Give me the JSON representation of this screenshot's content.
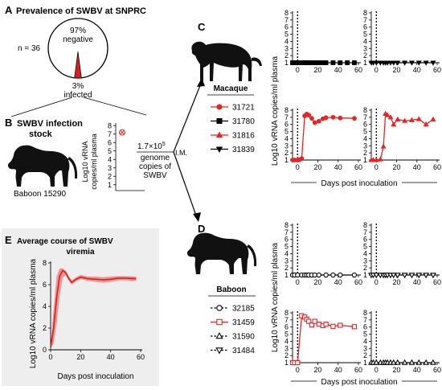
{
  "panelA": {
    "letter": "A",
    "title": "Prevalence of SWBV at SNPRC",
    "n_label": "n = 36",
    "negative_pct": "97%",
    "negative_label": "negative",
    "infected_pct": "3%",
    "infected_label": "infected",
    "pie_negative_fraction": 0.97,
    "pie_infected_fraction": 0.03,
    "colors": {
      "infected": "#d42020",
      "outline": "#000000"
    }
  },
  "panelB": {
    "letter": "B",
    "title_line1": "SWBV infection",
    "title_line2": "stock",
    "animal_label": "Baboon 15290",
    "ylabel_line1": "Log10 vRNA",
    "ylabel_line2": "copies/ml plasma",
    "yticks": [
      "8",
      "7",
      "6",
      "5",
      "4",
      "3",
      "2",
      "1"
    ],
    "stock_value_log10": 7.2,
    "dose_base": "1.7×10",
    "dose_exp": "5",
    "dose_line2": "genome",
    "dose_line3": "copies of",
    "dose_line4": "SWBV",
    "route": "I.M."
  },
  "panelC": {
    "letter": "C",
    "legend_title": "Macaque",
    "ylabel": "Log10 vRNA copies/ml plasma",
    "xlabel": "Days post inoculation"
  },
  "panelD": {
    "letter": "D",
    "legend_title": "Baboon",
    "ylabel": "Log10 vRNA copies/ml plasma",
    "xlabel": "Days post inoculation"
  },
  "panelE": {
    "letter": "E",
    "title_line1": "Average course of SWBV",
    "title_line2": "viremia",
    "ylabel": "Log10 vRNA copies/ml plasma",
    "xlabel": "Days post inoculation",
    "xticks": [
      "0",
      "20",
      "40",
      "60"
    ],
    "yticks": [
      "0",
      "2",
      "4",
      "6",
      "8"
    ],
    "colors": {
      "band": "#f08a8a",
      "line": "#d42020",
      "background": "#eeeeee"
    }
  },
  "chart_data": [
    {
      "id": "C-31721",
      "type": "line",
      "xlim": [
        -5,
        60
      ],
      "ylim": [
        1,
        8
      ],
      "inoculation_day": 0,
      "series": [
        {
          "name": "31721",
          "color": "#e32626",
          "marker": "circle-filled",
          "x": [
            -7,
            -3,
            0,
            2,
            4,
            7,
            9,
            11,
            14,
            17,
            21,
            25,
            28,
            35,
            42,
            56
          ],
          "y": [
            1,
            1,
            1,
            1.05,
            1.2,
            7.2,
            7.45,
            7.3,
            6.85,
            6.25,
            6.45,
            6.8,
            6.95,
            7.0,
            6.9,
            6.85
          ]
        }
      ]
    },
    {
      "id": "C-31816",
      "type": "line",
      "xlim": [
        -5,
        60
      ],
      "ylim": [
        1,
        8
      ],
      "inoculation_day": 0,
      "series": [
        {
          "name": "31816",
          "color": "#e32626",
          "marker": "triangle-up-filled",
          "x": [
            -7,
            -3,
            0,
            4,
            7,
            9,
            11,
            14,
            17,
            21,
            28,
            35,
            42,
            49,
            56
          ],
          "y": [
            1,
            1,
            1,
            1.1,
            2.9,
            7.5,
            7.3,
            7.0,
            6.0,
            6.7,
            6.5,
            6.6,
            6.75,
            6.0,
            6.7
          ]
        }
      ]
    },
    {
      "id": "C-31780",
      "type": "line",
      "xlim": [
        -5,
        60
      ],
      "ylim": [
        1,
        8
      ],
      "inoculation_day": 0,
      "series": [
        {
          "name": "31780",
          "color": "#000000",
          "marker": "square-filled",
          "x": [
            -7,
            -3,
            0,
            4,
            7,
            9,
            11,
            14,
            17,
            21,
            25,
            28,
            35,
            42,
            49,
            56
          ],
          "y": [
            1,
            1,
            1,
            1,
            1,
            1,
            1,
            1,
            1,
            1,
            1,
            1,
            1,
            1,
            1,
            1
          ]
        }
      ]
    },
    {
      "id": "C-31839",
      "type": "line",
      "xlim": [
        -5,
        60
      ],
      "ylim": [
        1,
        8
      ],
      "inoculation_day": 0,
      "series": [
        {
          "name": "31839",
          "color": "#000000",
          "marker": "triangle-down-filled",
          "x": [
            -7,
            -3,
            0,
            4,
            7,
            9,
            11,
            14,
            17,
            21,
            28,
            35,
            42,
            49,
            56
          ],
          "y": [
            1,
            1,
            1,
            1,
            1,
            1,
            1,
            1,
            1,
            1,
            1,
            1,
            1,
            1,
            1
          ]
        }
      ]
    },
    {
      "id": "D-31459",
      "type": "line",
      "xlim": [
        -5,
        60
      ],
      "ylim": [
        1,
        8
      ],
      "inoculation_day": 0,
      "series": [
        {
          "name": "31459",
          "color": "#e32626",
          "marker": "square-open",
          "x": [
            -7,
            -3,
            0,
            4,
            7,
            9,
            11,
            14,
            17,
            21,
            25,
            28,
            35,
            42,
            56
          ],
          "y": [
            1,
            1,
            1,
            7.6,
            7.4,
            7.1,
            6.8,
            6.3,
            6.8,
            6.4,
            6.2,
            6.4,
            6.1,
            6.25,
            6.05
          ]
        }
      ]
    },
    {
      "id": "D-31590",
      "type": "line",
      "xlim": [
        -5,
        60
      ],
      "ylim": [
        1,
        8
      ],
      "inoculation_day": 0,
      "series": [
        {
          "name": "31590",
          "color": "#000000",
          "marker": "triangle-up-open",
          "x": [
            -7,
            -3,
            0,
            4,
            7,
            9,
            11,
            14,
            17,
            21,
            28,
            35,
            42,
            49,
            56
          ],
          "y": [
            1,
            1,
            1,
            1,
            1,
            1,
            1,
            1,
            1,
            1,
            1,
            1,
            1,
            1,
            1
          ]
        }
      ]
    },
    {
      "id": "D-32185",
      "type": "line",
      "xlim": [
        -5,
        60
      ],
      "ylim": [
        1,
        8
      ],
      "inoculation_day": 0,
      "series": [
        {
          "name": "32185",
          "color": "#000000",
          "marker": "circle-open",
          "x": [
            -7,
            -3,
            0,
            4,
            7,
            9,
            11,
            14,
            17,
            21,
            28,
            35,
            42,
            56
          ],
          "y": [
            1,
            1,
            1,
            1,
            1,
            1,
            1,
            1,
            1,
            1,
            1,
            1,
            1,
            1
          ]
        }
      ]
    },
    {
      "id": "D-31484",
      "type": "line",
      "xlim": [
        -5,
        60
      ],
      "ylim": [
        1,
        8
      ],
      "inoculation_day": 0,
      "series": [
        {
          "name": "31484",
          "color": "#000000",
          "marker": "triangle-down-open",
          "x": [
            -7,
            -3,
            0,
            4,
            7,
            9,
            11,
            14,
            17,
            21,
            28,
            35,
            42,
            49,
            56
          ],
          "y": [
            1,
            1,
            1,
            1,
            1,
            1,
            1,
            1,
            1,
            1,
            1,
            1,
            1,
            1,
            1
          ]
        }
      ]
    },
    {
      "id": "E-average",
      "type": "area",
      "xlim": [
        0,
        60
      ],
      "ylim": [
        0,
        8
      ],
      "x": [
        0,
        2,
        4,
        6,
        8,
        10,
        12,
        14,
        17,
        20,
        25,
        30,
        35,
        40,
        45,
        50,
        57
      ],
      "mean": [
        0.2,
        2.0,
        4.8,
        6.8,
        7.3,
        7.1,
        6.6,
        6.2,
        6.5,
        6.7,
        6.55,
        6.5,
        6.45,
        6.5,
        6.6,
        6.6,
        6.55
      ],
      "upper": [
        0.3,
        3.8,
        6.8,
        7.5,
        7.5,
        7.3,
        6.8,
        6.4,
        6.7,
        6.9,
        6.75,
        6.75,
        6.7,
        6.75,
        6.8,
        6.8,
        6.75
      ],
      "lower": [
        0.1,
        0.6,
        2.4,
        5.0,
        6.6,
        6.9,
        6.4,
        6.0,
        6.3,
        6.5,
        6.35,
        6.25,
        6.2,
        6.25,
        6.4,
        6.4,
        6.35
      ]
    }
  ]
}
